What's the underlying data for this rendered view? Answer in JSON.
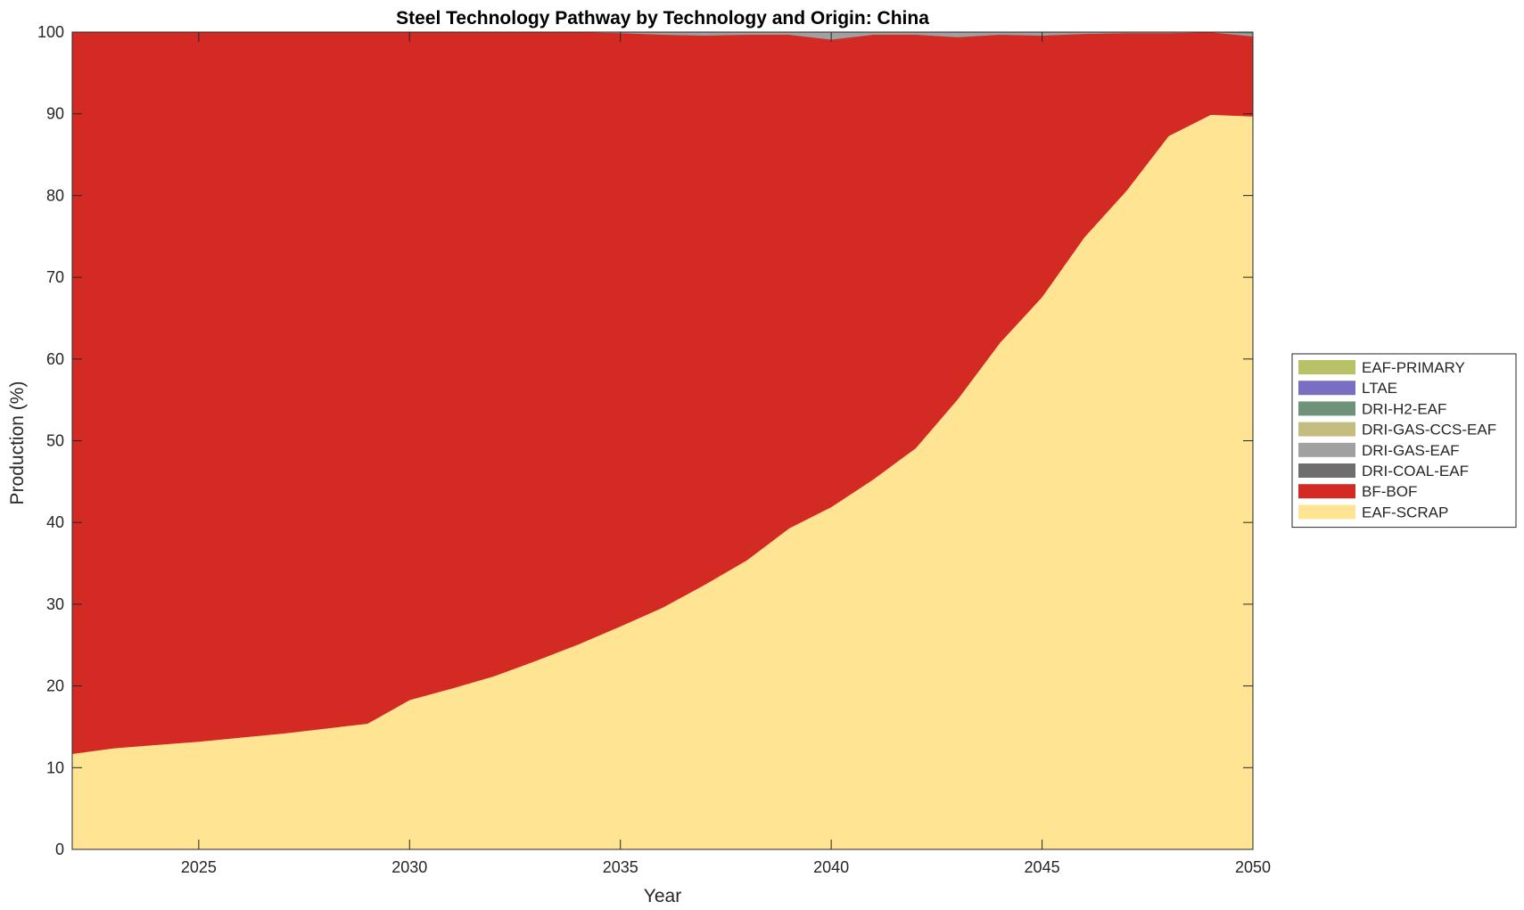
{
  "chart_data": {
    "type": "area",
    "stacked": true,
    "title": "Steel Technology Pathway by Technology and Origin: China",
    "xlabel": "Year",
    "ylabel": "Production (%)",
    "xlim": [
      2022,
      2050
    ],
    "ylim": [
      0,
      100
    ],
    "x_ticks": [
      2025,
      2030,
      2035,
      2040,
      2045,
      2050
    ],
    "y_ticks": [
      0,
      10,
      20,
      30,
      40,
      50,
      60,
      70,
      80,
      90,
      100
    ],
    "grid": false,
    "legend_position": "right",
    "x": [
      2022,
      2023,
      2024,
      2025,
      2026,
      2027,
      2028,
      2029,
      2030,
      2031,
      2032,
      2033,
      2034,
      2035,
      2036,
      2037,
      2038,
      2039,
      2040,
      2041,
      2042,
      2043,
      2044,
      2045,
      2046,
      2047,
      2048,
      2049,
      2050
    ],
    "series": [
      {
        "name": "EAF-SCRAP",
        "color": "#FFE494",
        "values": [
          11.7,
          12.4,
          12.8,
          13.2,
          13.7,
          14.2,
          14.8,
          15.4,
          18.3,
          19.7,
          21.2,
          23.1,
          25.1,
          27.3,
          29.6,
          32.4,
          35.4,
          39.3,
          41.9,
          45.3,
          49.1,
          55.1,
          62.0,
          67.6,
          74.9,
          80.6,
          87.3,
          89.9,
          89.7
        ]
      },
      {
        "name": "BF-BOF",
        "color": "#D32A24",
        "values": [
          88.3,
          87.6,
          87.2,
          86.8,
          86.3,
          85.8,
          85.2,
          84.6,
          81.7,
          80.3,
          78.8,
          76.9,
          74.9,
          72.6,
          70.1,
          67.2,
          64.3,
          60.4,
          57.2,
          54.4,
          50.6,
          44.3,
          37.7,
          32.0,
          24.9,
          19.3,
          12.6,
          10.1,
          9.8
        ]
      },
      {
        "name": "DRI-COAL-EAF",
        "color": "#6E6E6E",
        "values": [
          0,
          0,
          0,
          0,
          0,
          0,
          0,
          0,
          0,
          0,
          0,
          0,
          0,
          0,
          0,
          0,
          0,
          0,
          0,
          0,
          0,
          0,
          0,
          0,
          0,
          0,
          0,
          0,
          0
        ]
      },
      {
        "name": "DRI-GAS-EAF",
        "color": "#A0A0A0",
        "values": [
          0,
          0,
          0,
          0,
          0,
          0,
          0,
          0,
          0,
          0,
          0,
          0,
          0,
          0.1,
          0.3,
          0.4,
          0.3,
          0.3,
          0.9,
          0.3,
          0.3,
          0.6,
          0.3,
          0.4,
          0.2,
          0.1,
          0.1,
          0,
          0.3
        ]
      },
      {
        "name": "DRI-GAS-CCS-EAF",
        "color": "#C5BC82",
        "values": [
          0,
          0,
          0,
          0,
          0,
          0,
          0,
          0,
          0,
          0,
          0,
          0,
          0,
          0,
          0,
          0,
          0,
          0,
          0,
          0,
          0,
          0,
          0,
          0,
          0,
          0,
          0,
          0,
          0
        ]
      },
      {
        "name": "DRI-H2-EAF",
        "color": "#6F927A",
        "values": [
          0,
          0,
          0,
          0,
          0,
          0,
          0,
          0,
          0,
          0,
          0,
          0,
          0,
          0,
          0,
          0,
          0,
          0,
          0,
          0,
          0,
          0,
          0,
          0,
          0,
          0,
          0,
          0,
          0.2
        ]
      },
      {
        "name": "LTAE",
        "color": "#7A6EC2",
        "values": [
          0,
          0,
          0,
          0,
          0,
          0,
          0,
          0,
          0,
          0,
          0,
          0,
          0,
          0,
          0,
          0,
          0,
          0,
          0,
          0,
          0,
          0,
          0,
          0,
          0,
          0,
          0,
          0,
          0
        ]
      },
      {
        "name": "EAF-PRIMARY",
        "color": "#B8C167",
        "values": [
          0,
          0,
          0,
          0,
          0,
          0,
          0,
          0,
          0,
          0,
          0,
          0,
          0,
          0,
          0,
          0,
          0,
          0,
          0,
          0,
          0,
          0,
          0,
          0,
          0,
          0,
          0,
          0,
          0
        ]
      }
    ],
    "legend_order": [
      "EAF-PRIMARY",
      "LTAE",
      "DRI-H2-EAF",
      "DRI-GAS-CCS-EAF",
      "DRI-GAS-EAF",
      "DRI-COAL-EAF",
      "BF-BOF",
      "EAF-SCRAP"
    ]
  }
}
